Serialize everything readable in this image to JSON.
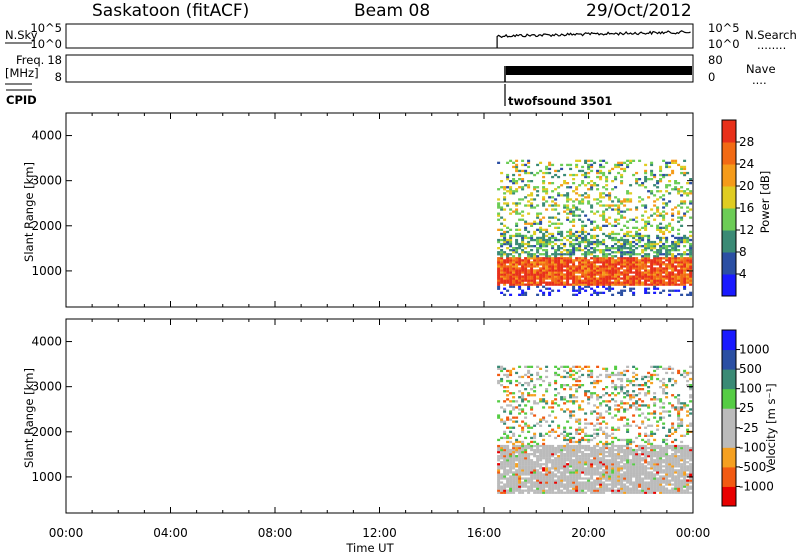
{
  "header": {
    "radar": "Saskatoon (fitACF)",
    "beam": "Beam 08",
    "date": "29/Oct/2012"
  },
  "panels": {
    "nsky": {
      "left_label": "N.Sky",
      "left_ticks": [
        "10^5",
        "10^0"
      ],
      "right_label": "N.Search",
      "right_ticks": [
        "10^5",
        "10^0"
      ],
      "right_dots": "........"
    },
    "freq": {
      "left_label_line1": "Freq.",
      "left_label_line2": "[MHz]",
      "left_ticks": [
        "18",
        "8"
      ],
      "right_label": "Nave",
      "right_ticks": [
        "80",
        "0"
      ],
      "right_dots": "...."
    },
    "cpid": {
      "label": "CPID",
      "value": "twofsound 3501"
    }
  },
  "colors": {
    "power": [
      "#1a1aff",
      "#2b4fa3",
      "#3a8a75",
      "#6ccc56",
      "#e0cc22",
      "#f59b1a",
      "#f26a14",
      "#e8301a"
    ],
    "velocity": [
      "#e80000",
      "#f25a12",
      "#f5a020",
      "#bbbbbb",
      "#bbbbbb",
      "#55cc44",
      "#3a8a75",
      "#2b4fa3",
      "#1a1aff"
    ]
  },
  "chart_data": [
    {
      "type": "heatmap",
      "name": "power-panel",
      "ylabel": "Slant Range [km]",
      "yticks": [
        "1000",
        "2000",
        "3000",
        "4000"
      ],
      "ylim": [
        200,
        4500
      ],
      "xlim_hours": [
        0,
        24
      ],
      "data_start_hour": 16.5,
      "colorbar": {
        "label": "Power [dB]",
        "ticks": [
          "4",
          "8",
          "12",
          "16",
          "20",
          "24",
          "28"
        ],
        "range": [
          0,
          32
        ]
      },
      "features": [
        {
          "desc": "strong scatter band",
          "range_km": [
            700,
            1300
          ],
          "power_db": 28
        },
        {
          "desc": "mid band",
          "range_km": [
            1300,
            1800
          ],
          "power_db": 12
        },
        {
          "desc": "patchy scatter",
          "range_km": [
            1800,
            3500
          ],
          "power_db": 14
        }
      ]
    },
    {
      "type": "heatmap",
      "name": "velocity-panel",
      "ylabel": "Slant Range [km]",
      "yticks": [
        "1000",
        "2000",
        "3000",
        "4000"
      ],
      "ylim": [
        200,
        4500
      ],
      "xlim_hours": [
        0,
        24
      ],
      "data_start_hour": 16.5,
      "xticks": [
        "00:00",
        "04:00",
        "08:00",
        "12:00",
        "16:00",
        "20:00",
        "00:00"
      ],
      "xlabel": "Time UT",
      "colorbar": {
        "label": "Velocity [m s⁻¹]",
        "ticks": [
          "1000",
          "500",
          "100",
          "25",
          "-25",
          "-100",
          "-500",
          "-1000"
        ],
        "range": [
          -1000,
          1000
        ]
      }
    }
  ]
}
